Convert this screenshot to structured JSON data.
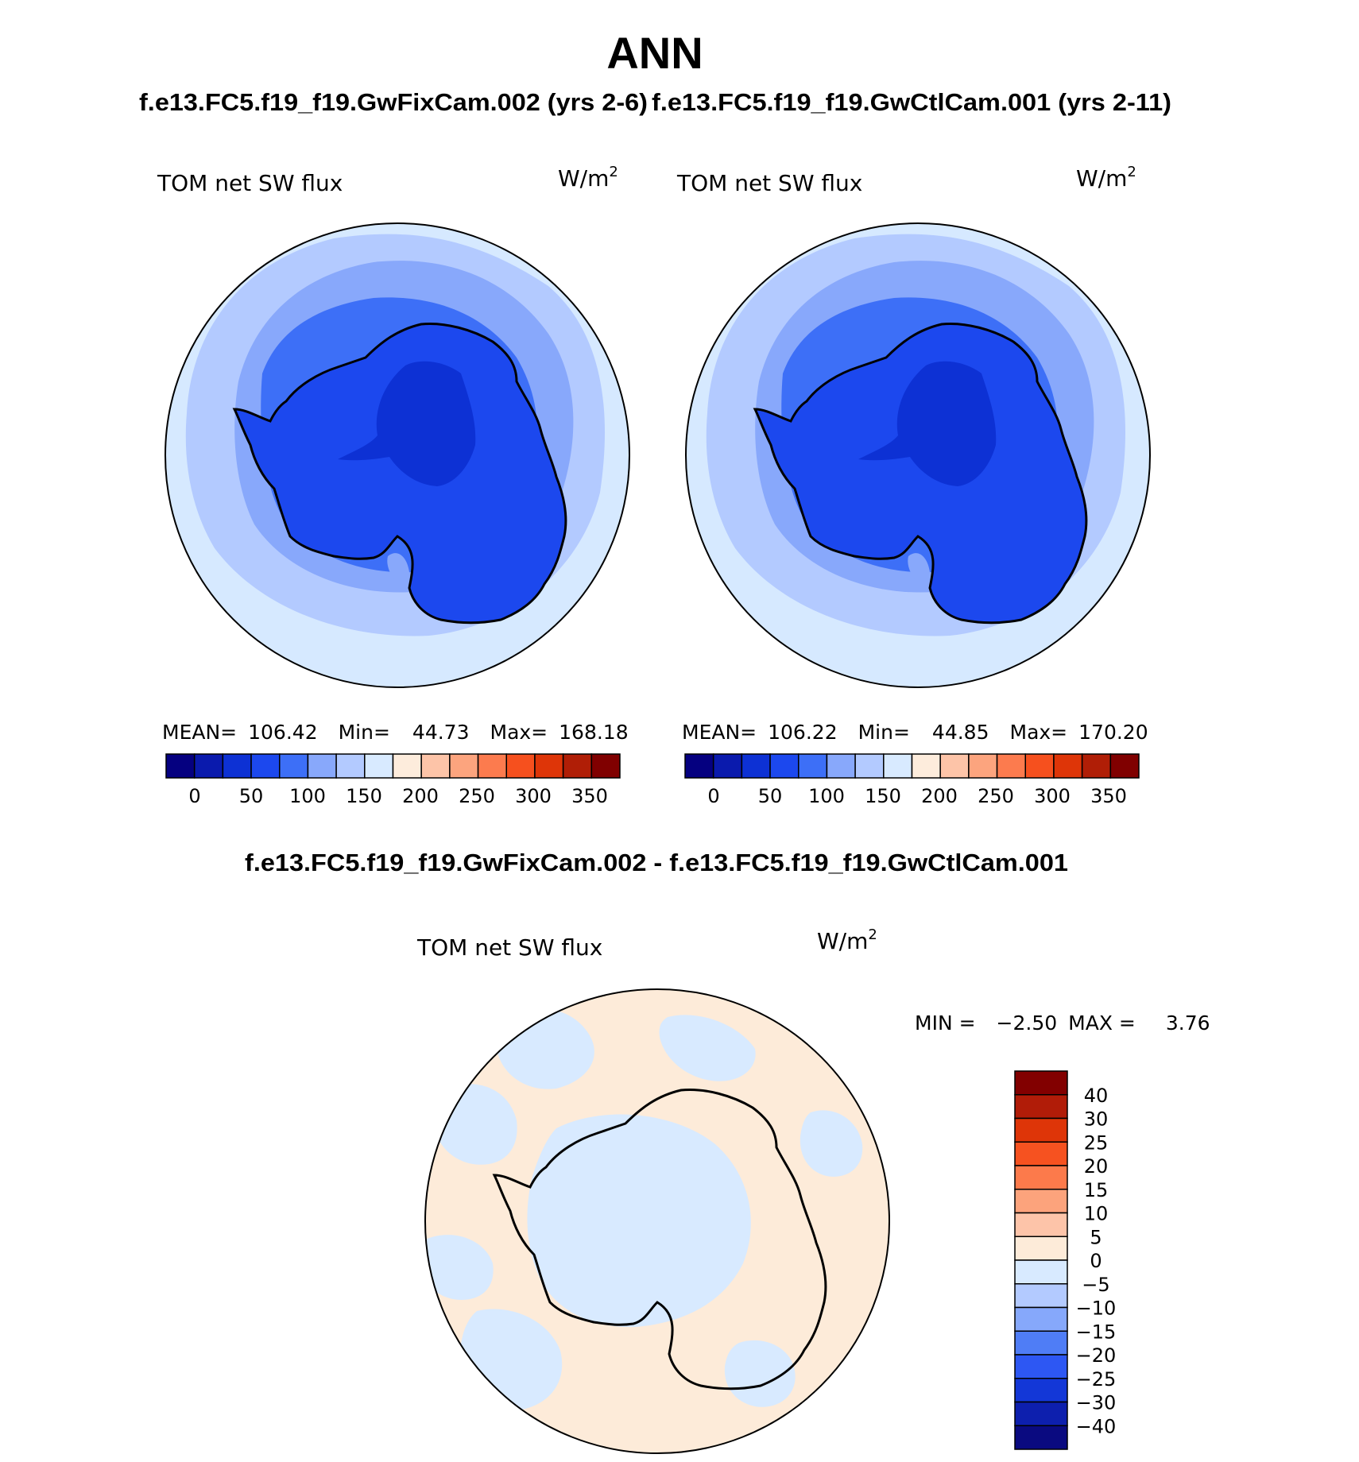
{
  "title": "ANN",
  "subtitle_left": "f.e13.FC5.f19_f19.GwFixCam.002 (yrs 2-6)",
  "subtitle_right": "f.e13.FC5.f19_f19.GwCtlCam.001 (yrs 2-11)",
  "diff_title": "f.e13.FC5.f19_f19.GwFixCam.002 - f.e13.FC5.f19_f19.GwCtlCam.001",
  "panels": [
    {
      "variable": "TOM net SW flux",
      "units": "W/m",
      "units_exp": "2",
      "stats": {
        "mean_label": "MEAN=",
        "mean": "106.42",
        "min_label": "Min=",
        "min": "44.73",
        "max_label": "Max=",
        "max": "168.18"
      }
    },
    {
      "variable": "TOM net SW flux",
      "units": "W/m",
      "units_exp": "2",
      "stats": {
        "mean_label": "MEAN=",
        "mean": "106.22",
        "min_label": "Min=",
        "min": "44.85",
        "max_label": "Max=",
        "max": "170.20"
      }
    }
  ],
  "diff_panel": {
    "variable": "TOM net SW flux",
    "units": "W/m",
    "units_exp": "2",
    "stats": {
      "min_label": "MIN =",
      "min": "−2.50",
      "max_label": "MAX =",
      "max": "3.76"
    }
  },
  "colorbar_main": {
    "colors": [
      "#050080",
      "#0a1aad",
      "#0d31d4",
      "#1c48ee",
      "#3d6ff7",
      "#88a8fb",
      "#b3caff",
      "#d8eaff",
      "#fdecdc",
      "#fdc4a8",
      "#fca47e",
      "#fc7b4e",
      "#f6501e",
      "#de3508",
      "#b01e06",
      "#800000"
    ],
    "labels": [
      "0",
      "50",
      "100",
      "150",
      "200",
      "250",
      "300",
      "350"
    ]
  },
  "colorbar_diff": {
    "colors": [
      "#0a0a80",
      "#0d1fae",
      "#1337d7",
      "#2d57f3",
      "#4f7df6",
      "#86a8fb",
      "#b3caff",
      "#d8eaff",
      "#fdebd9",
      "#fdc4a9",
      "#fca37c",
      "#fc7a4b",
      "#f65220",
      "#de3508",
      "#b11c08",
      "#820000"
    ],
    "labels": [
      "40",
      "30",
      "25",
      "20",
      "15",
      "10",
      "5",
      "0",
      "−5",
      "−10",
      "−15",
      "−20",
      "−25",
      "−30",
      "−40"
    ]
  },
  "map_colors": {
    "ocean_outer": "#d6e9ff",
    "ring_2": "#b3caff",
    "ring_3": "#88a8fb",
    "ring_4": "#3d6ff7",
    "continent": "#1c48ee",
    "plateau": "#0d31d4",
    "diff_warm": "#fdebd9",
    "diff_cool": "#d8eaff"
  }
}
